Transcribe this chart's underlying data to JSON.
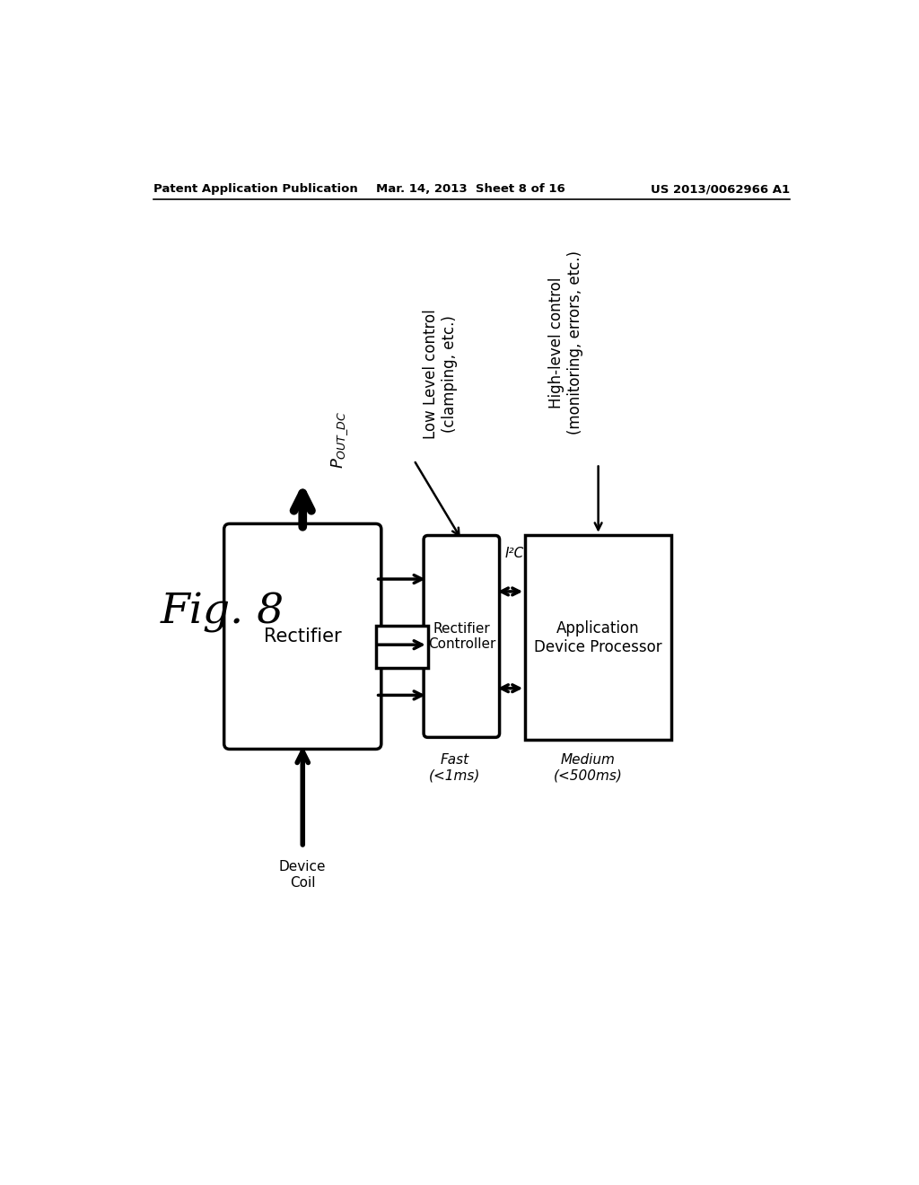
{
  "bg_color": "#ffffff",
  "header_left": "Patent Application Publication",
  "header_mid": "Mar. 14, 2013  Sheet 8 of 16",
  "header_right": "US 2013/0062966 A1",
  "fig_label": "Fig. 8",
  "rectifier_label": "Rectifier",
  "controller_label": "Rectifier\nController",
  "app_proc_label": "Application\nDevice Processor",
  "i2c_label": "I²C",
  "pout_label": "P₀ᵤᵀ_ᴰᶜ",
  "device_coil_label": "Device\nCoil",
  "low_level_label": "Low Level control\n(clamping, etc.)",
  "high_level_label": "High-level control\n(monitoring, errors, etc.)",
  "fast_label": "Fast\n(<1ms)",
  "medium_label": "Medium\n(<500ms)"
}
